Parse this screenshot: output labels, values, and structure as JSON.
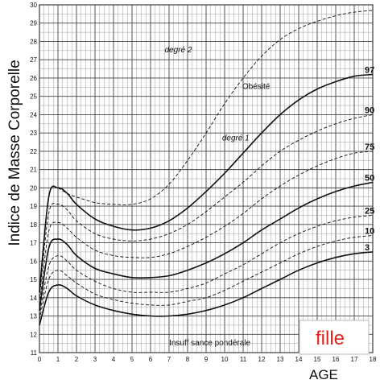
{
  "chart_data": {
    "type": "line",
    "title": "",
    "ylabel": "Indice de Masse Corporelle",
    "xlabel": "AGE",
    "xlim": [
      0,
      18
    ],
    "ylim": [
      11,
      30
    ],
    "x_ticks": [
      0,
      1,
      2,
      3,
      4,
      5,
      6,
      7,
      8,
      9,
      10,
      11,
      12,
      13,
      14,
      15,
      16,
      17,
      18
    ],
    "y_ticks": [
      11,
      12,
      13,
      14,
      15,
      16,
      17,
      18,
      19,
      20,
      21,
      22,
      23,
      24,
      25,
      26,
      27,
      28,
      29,
      30
    ],
    "x_tick_labels": [
      "0",
      "1",
      "2",
      "3",
      "4",
      "5",
      "6",
      "7",
      "8",
      "9",
      "10",
      "11",
      "12",
      "13",
      "14",
      "15",
      "16",
      "17",
      "18"
    ],
    "y_tick_labels": [
      "11",
      "12",
      "13",
      "14",
      "15",
      "16",
      "17",
      "18",
      "19",
      "20",
      "21",
      "22",
      "23",
      "24",
      "25",
      "26",
      "27",
      "28",
      "29",
      "30"
    ],
    "grid": true,
    "series": [
      {
        "name": "3",
        "style": "solid",
        "x": [
          0,
          0.5,
          1,
          1.5,
          2,
          3,
          4,
          5,
          6,
          7,
          8,
          9,
          10,
          11,
          12,
          13,
          14,
          15,
          16,
          17,
          18
        ],
        "y": [
          12.5,
          14.3,
          14.7,
          14.5,
          14.1,
          13.6,
          13.3,
          13.1,
          13.0,
          13.0,
          13.1,
          13.3,
          13.6,
          14.0,
          14.5,
          15.0,
          15.5,
          15.9,
          16.2,
          16.4,
          16.5
        ]
      },
      {
        "name": "10",
        "style": "dashed",
        "x": [
          0,
          0.5,
          1,
          1.5,
          2,
          3,
          4,
          5,
          6,
          7,
          8,
          9,
          10,
          11,
          12,
          13,
          14,
          15,
          16,
          17,
          18
        ],
        "y": [
          12.8,
          15.0,
          15.5,
          15.2,
          14.8,
          14.2,
          13.9,
          13.7,
          13.6,
          13.6,
          13.8,
          14.0,
          14.4,
          14.9,
          15.4,
          15.9,
          16.4,
          16.8,
          17.1,
          17.3,
          17.4
        ]
      },
      {
        "name": "25",
        "style": "dashed",
        "x": [
          0,
          0.5,
          1,
          1.5,
          2,
          3,
          4,
          5,
          6,
          7,
          8,
          9,
          10,
          11,
          12,
          13,
          14,
          15,
          16,
          17,
          18
        ],
        "y": [
          13.0,
          15.7,
          16.3,
          16.0,
          15.5,
          14.9,
          14.5,
          14.3,
          14.3,
          14.3,
          14.5,
          14.8,
          15.3,
          15.8,
          16.4,
          17.0,
          17.5,
          17.9,
          18.2,
          18.4,
          18.5
        ]
      },
      {
        "name": "50",
        "style": "solid",
        "x": [
          0,
          0.5,
          1,
          1.5,
          2,
          3,
          4,
          5,
          6,
          7,
          8,
          9,
          10,
          11,
          12,
          13,
          14,
          15,
          16,
          17,
          18
        ],
        "y": [
          13.3,
          16.7,
          17.2,
          16.9,
          16.3,
          15.6,
          15.3,
          15.1,
          15.1,
          15.2,
          15.5,
          15.9,
          16.4,
          17.0,
          17.7,
          18.3,
          18.9,
          19.4,
          19.8,
          20.1,
          20.3
        ]
      },
      {
        "name": "75",
        "style": "dashed",
        "x": [
          0,
          0.5,
          1,
          1.5,
          2,
          3,
          4,
          5,
          6,
          7,
          8,
          9,
          10,
          11,
          12,
          13,
          14,
          15,
          16,
          17,
          18
        ],
        "y": [
          13.6,
          17.6,
          18.1,
          17.8,
          17.3,
          16.6,
          16.3,
          16.2,
          16.2,
          16.4,
          16.8,
          17.3,
          17.9,
          18.6,
          19.4,
          20.1,
          20.7,
          21.2,
          21.6,
          21.9,
          22.0
        ]
      },
      {
        "name": "90",
        "style": "dashed",
        "x": [
          0,
          0.5,
          1,
          1.5,
          2,
          3,
          4,
          5,
          6,
          7,
          8,
          9,
          10,
          11,
          12,
          13,
          14,
          15,
          16,
          17,
          18
        ],
        "y": [
          14.0,
          18.6,
          19.1,
          18.8,
          18.2,
          17.5,
          17.2,
          17.1,
          17.2,
          17.5,
          18.0,
          18.7,
          19.5,
          20.3,
          21.2,
          22.0,
          22.6,
          23.1,
          23.5,
          23.8,
          24.0
        ]
      },
      {
        "name": "97",
        "style": "solid",
        "x": [
          0,
          0.5,
          1,
          1.5,
          2,
          3,
          4,
          5,
          6,
          7,
          8,
          9,
          10,
          11,
          12,
          13,
          14,
          15,
          16,
          17,
          18
        ],
        "y": [
          14.3,
          19.5,
          20.0,
          19.7,
          19.1,
          18.3,
          17.9,
          17.7,
          17.8,
          18.2,
          18.9,
          19.8,
          20.8,
          21.9,
          23.0,
          24.0,
          24.8,
          25.4,
          25.8,
          26.1,
          26.2
        ]
      },
      {
        "name": "",
        "style": "dashed",
        "x": [
          1,
          1.5,
          2,
          3,
          4,
          5,
          6,
          7,
          8,
          9,
          10,
          11,
          12,
          13,
          14,
          15,
          16,
          17,
          18
        ],
        "y": [
          20.0,
          19.7,
          19.5,
          19.2,
          19.1,
          19.1,
          19.4,
          20.2,
          21.5,
          23.0,
          24.6,
          26.0,
          27.2,
          28.1,
          28.7,
          29.1,
          29.4,
          29.6,
          29.7
        ]
      }
    ],
    "right_labels": [
      {
        "text": "97",
        "y": 26.2
      },
      {
        "text": "90",
        "y": 24.0
      },
      {
        "text": "75",
        "y": 22.0
      },
      {
        "text": "50",
        "y": 20.3
      },
      {
        "text": "25",
        "y": 18.5
      },
      {
        "text": "10",
        "y": 17.4
      },
      {
        "text": "3",
        "y": 16.5
      }
    ],
    "annotations": [
      {
        "text": "degré 2",
        "x": 7.5,
        "y": 27.4,
        "italic": true
      },
      {
        "text": "Obésité",
        "x": 11.7,
        "y": 25.4,
        "italic": false
      },
      {
        "text": "degré 1",
        "x": 10.6,
        "y": 22.6,
        "italic": true
      },
      {
        "text": "Insuff sance pondérale",
        "x": 9.2,
        "y": 11.4,
        "italic": false
      }
    ],
    "badge": {
      "text": "fille",
      "color": "#e2231a"
    }
  }
}
